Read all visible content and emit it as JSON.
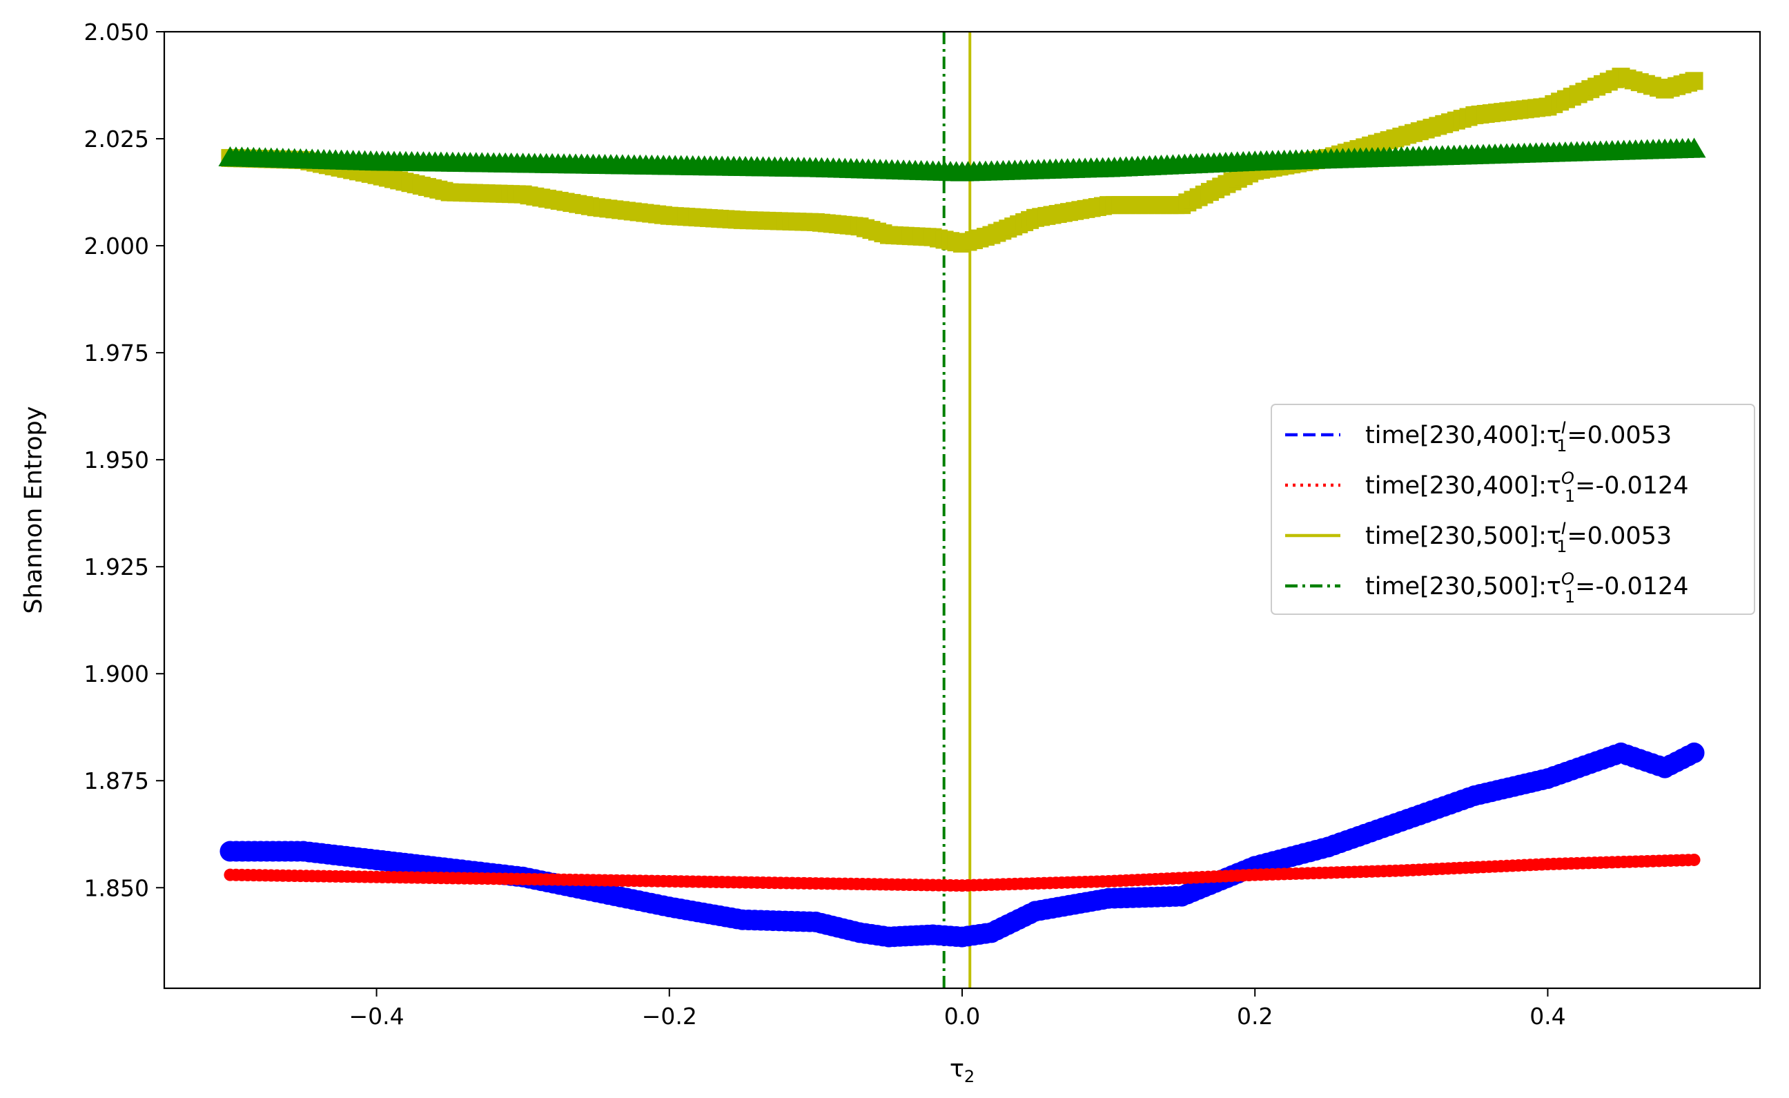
{
  "chart_data": {
    "type": "scatter",
    "xlabel": "τ",
    "xlabel_sub": "2",
    "ylabel": "Shannon Entropy",
    "xlim": [
      -0.545,
      0.545
    ],
    "ylim": [
      1.8265,
      2.05
    ],
    "x_ticks": [
      -0.4,
      -0.2,
      0.0,
      0.2,
      0.4
    ],
    "x_tick_labels": [
      "−0.4",
      "−0.2",
      "0.0",
      "0.2",
      "0.4"
    ],
    "y_ticks": [
      1.85,
      1.875,
      1.9,
      1.925,
      1.95,
      1.975,
      2.0,
      2.025,
      2.05
    ],
    "y_tick_labels": [
      "1.850",
      "1.875",
      "1.900",
      "1.925",
      "1.950",
      "1.975",
      "2.000",
      "2.025",
      "2.050"
    ],
    "grid": false,
    "legend_position": "center-right",
    "vertical_lines": [
      {
        "x": 0.0053,
        "color": "#bfbf00",
        "style": "solid"
      },
      {
        "x": -0.0124,
        "color": "#008000",
        "style": "dashdot"
      }
    ],
    "series": [
      {
        "color": "#0000ff",
        "marker": "circle",
        "x": [
          -0.5,
          -0.45,
          -0.4,
          -0.35,
          -0.3,
          -0.25,
          -0.2,
          -0.15,
          -0.1,
          -0.07,
          -0.05,
          -0.02,
          0.0,
          0.02,
          0.05,
          0.1,
          0.15,
          0.2,
          0.25,
          0.3,
          0.35,
          0.4,
          0.45,
          0.48,
          0.5
        ],
        "y": [
          1.8585,
          1.8585,
          1.8565,
          1.8545,
          1.8525,
          1.849,
          1.8455,
          1.8425,
          1.842,
          1.8395,
          1.8385,
          1.839,
          1.8385,
          1.8395,
          1.8445,
          1.8475,
          1.848,
          1.855,
          1.8595,
          1.8655,
          1.8715,
          1.8755,
          1.8815,
          1.878,
          1.8815
        ]
      },
      {
        "color": "#ff0000",
        "marker": "circle-small",
        "x": [
          -0.5,
          -0.4,
          -0.3,
          -0.2,
          -0.1,
          0.0,
          0.1,
          0.2,
          0.3,
          0.4,
          0.5
        ],
        "y": [
          1.853,
          1.8525,
          1.852,
          1.8515,
          1.851,
          1.8505,
          1.8515,
          1.853,
          1.854,
          1.8555,
          1.8565
        ]
      },
      {
        "color": "#bfbf00",
        "marker": "square",
        "x": [
          -0.5,
          -0.45,
          -0.4,
          -0.35,
          -0.3,
          -0.25,
          -0.2,
          -0.15,
          -0.1,
          -0.07,
          -0.05,
          -0.02,
          0.0,
          0.02,
          0.05,
          0.1,
          0.15,
          0.2,
          0.25,
          0.3,
          0.35,
          0.4,
          0.45,
          0.48,
          0.5
        ],
        "y": [
          2.0205,
          2.02,
          2.0165,
          2.0125,
          2.012,
          2.009,
          2.007,
          2.006,
          2.0055,
          2.0045,
          2.0025,
          2.002,
          2.0005,
          2.0025,
          2.0065,
          2.0095,
          2.0095,
          2.0175,
          2.0205,
          2.0255,
          2.0305,
          2.0325,
          2.0395,
          2.0365,
          2.0385
        ]
      },
      {
        "color": "#008000",
        "marker": "triangle",
        "x": [
          -0.5,
          -0.4,
          -0.3,
          -0.2,
          -0.1,
          0.0,
          0.1,
          0.2,
          0.3,
          0.4,
          0.5
        ],
        "y": [
          2.0205,
          2.0195,
          2.019,
          2.0185,
          2.018,
          2.017,
          2.018,
          2.0195,
          2.0205,
          2.0215,
          2.0225
        ]
      }
    ],
    "legend": [
      {
        "prefix": "time[230,400]:τ",
        "sup": "I",
        "sub": "1",
        "suffix": "=0.0053",
        "color": "#0000ff",
        "dash": "dashed"
      },
      {
        "prefix": "time[230,400]:τ",
        "sup": "O",
        "sub": "1",
        "suffix": "=-0.0124",
        "color": "#ff0000",
        "dash": "dotted"
      },
      {
        "prefix": "time[230,500]:τ",
        "sup": "I",
        "sub": "1",
        "suffix": "=0.0053",
        "color": "#bfbf00",
        "dash": "solid"
      },
      {
        "prefix": "time[230,500]:τ",
        "sup": "O",
        "sub": "1",
        "suffix": "=-0.0124",
        "color": "#008000",
        "dash": "dashdot"
      }
    ]
  }
}
